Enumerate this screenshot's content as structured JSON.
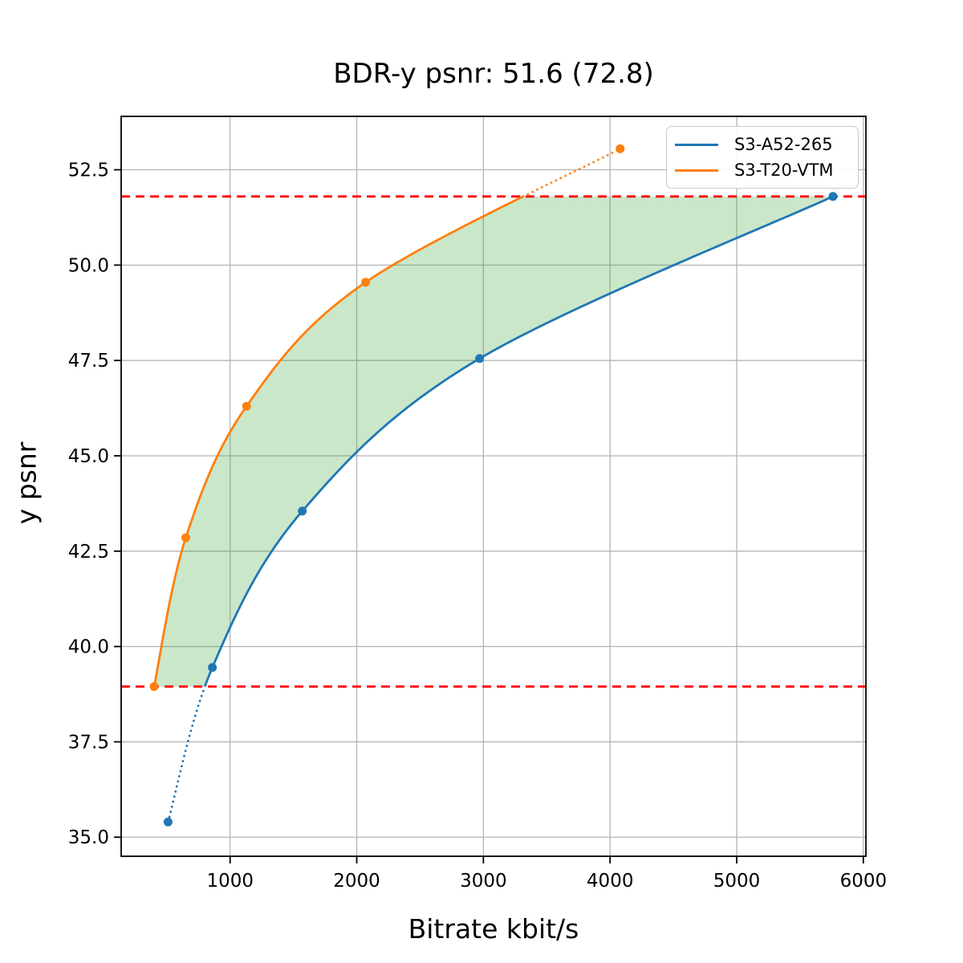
{
  "chart_data": {
    "type": "line",
    "title": "BDR-y psnr: 51.6 (72.8)",
    "xlabel": "Bitrate kbit/s",
    "ylabel": "y psnr",
    "xlim": [
      140,
      6020
    ],
    "ylim": [
      34.5,
      53.9
    ],
    "xticks": [
      1000,
      2000,
      3000,
      4000,
      5000,
      6000
    ],
    "yticks": [
      35.0,
      37.5,
      40.0,
      42.5,
      45.0,
      47.5,
      50.0,
      52.5
    ],
    "grid": true,
    "grid_color": "#b4b4b4",
    "legend": {
      "position": "upper right",
      "entries": [
        "S3-A52-265",
        "S3-T20-VTM"
      ]
    },
    "series": [
      {
        "name": "S3-A52-265",
        "color": "#1f77b4",
        "marker": "circle",
        "x": [
          510,
          860,
          1570,
          2970,
          5760
        ],
        "y": [
          35.4,
          39.45,
          43.55,
          47.55,
          51.8
        ]
      },
      {
        "name": "S3-T20-VTM",
        "color": "#ff7f0e",
        "marker": "circle",
        "x": [
          400,
          650,
          1130,
          2070,
          4080
        ],
        "y": [
          38.95,
          42.85,
          46.3,
          49.55,
          53.05
        ]
      }
    ],
    "hlines": {
      "values": [
        51.8,
        38.95
      ],
      "color": "#ff0000",
      "style": "dashed"
    },
    "fill_between": {
      "band": [
        38.95,
        51.8
      ],
      "color": "#2ca02c",
      "alpha": 0.25
    },
    "annotation_values": {
      "bdr_psnr": 51.6,
      "bdr_rate_pct": 72.8
    }
  }
}
